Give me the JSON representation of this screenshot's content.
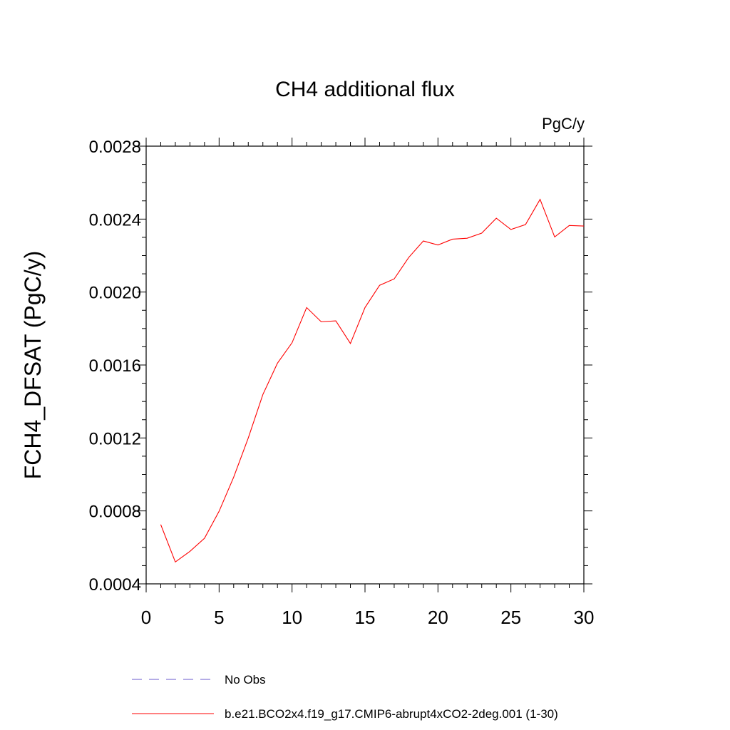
{
  "chart_data": {
    "type": "line",
    "title": "CH4 additional flux",
    "units": "PgC/y",
    "ylabel": "FCH4_DFSAT  (PgC/y)",
    "xlabel": "",
    "xlim": [
      0,
      30
    ],
    "ylim": [
      0.0004,
      0.0028
    ],
    "x_ticks": [
      0,
      5,
      10,
      15,
      20,
      25,
      30
    ],
    "x_tick_labels": [
      "0",
      "5",
      "10",
      "15",
      "20",
      "25",
      "30"
    ],
    "y_ticks": [
      0.0004,
      0.0008,
      0.0012,
      0.0016,
      0.002,
      0.0024,
      0.0028
    ],
    "y_tick_labels": [
      "0.0004",
      "0.0008",
      "0.0012",
      "0.0016",
      "0.0020",
      "0.0024",
      "0.0028"
    ],
    "grid": false,
    "legend_position": "bottom",
    "series": [
      {
        "name": "No Obs",
        "color": "#6a5acd",
        "dash": "dashed",
        "x": [],
        "values": []
      },
      {
        "name": "b.e21.BCO2x4.f19_g17.CMIP6-abrupt4xCO2-2deg.001 (1-30)",
        "color": "#ff0000",
        "dash": "solid",
        "x": [
          1,
          2,
          3,
          4,
          5,
          6,
          7,
          8,
          9,
          10,
          11,
          12,
          13,
          14,
          15,
          16,
          17,
          18,
          19,
          20,
          21,
          22,
          23,
          24,
          25,
          26,
          27,
          28,
          29,
          30
        ],
        "values": [
          0.000725,
          0.00052,
          0.000578,
          0.00065,
          0.000798,
          0.000985,
          0.0012,
          0.001438,
          0.00161,
          0.001722,
          0.001915,
          0.001837,
          0.001842,
          0.001718,
          0.001915,
          0.002037,
          0.002072,
          0.00219,
          0.00228,
          0.002258,
          0.00229,
          0.002295,
          0.002323,
          0.002405,
          0.002343,
          0.00237,
          0.002508,
          0.002302,
          0.002365,
          0.002362
        ]
      }
    ]
  }
}
